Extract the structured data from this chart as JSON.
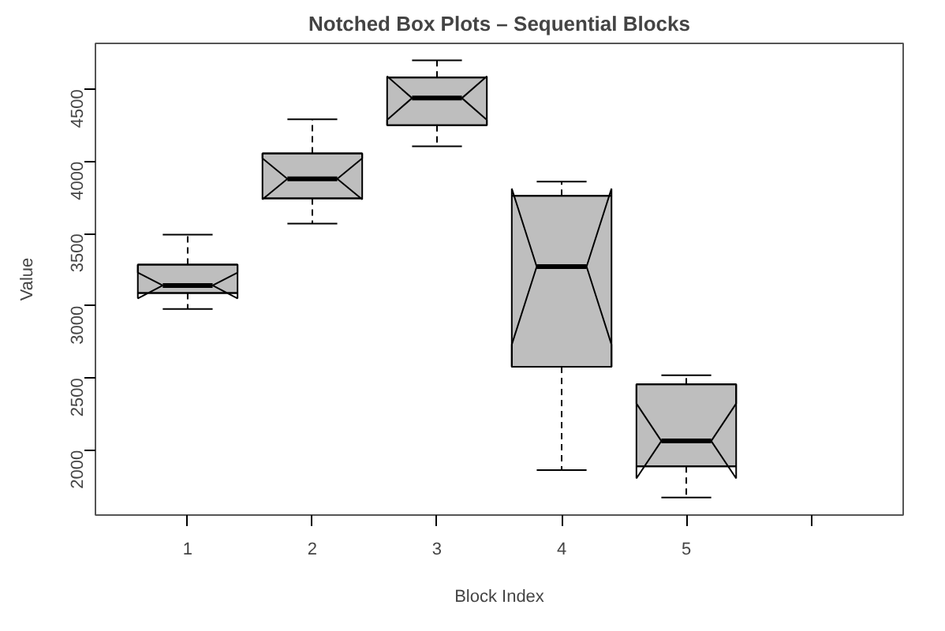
{
  "chart_data": {
    "type": "box",
    "title": "Notched Box Plots – Sequential Blocks",
    "xlabel": "Block Index",
    "ylabel": "Value",
    "categories": [
      "1",
      "2",
      "3",
      "4",
      "5",
      null
    ],
    "color": "#bebebe",
    "grid": false,
    "ylim": [
      1551,
      4818
    ],
    "yticks": [
      2000,
      2500,
      3000,
      3500,
      4000,
      4500
    ],
    "boxes": [
      {
        "low": 2978,
        "q1": 3089,
        "median": 3141,
        "q3": 3285,
        "high": 3493
      },
      {
        "low": 3570,
        "q1": 3745,
        "median": 3880,
        "q3": 4056,
        "high": 4292
      },
      {
        "low": 4105,
        "q1": 4251,
        "median": 4439,
        "q3": 4582,
        "high": 4700
      },
      {
        "low": 1863,
        "q1": 2578,
        "median": 3272,
        "q3": 3762,
        "high": 3860
      },
      {
        "low": 1672,
        "q1": 1888,
        "median": 2064,
        "q3": 2456,
        "high": 2520
      },
      null
    ]
  }
}
